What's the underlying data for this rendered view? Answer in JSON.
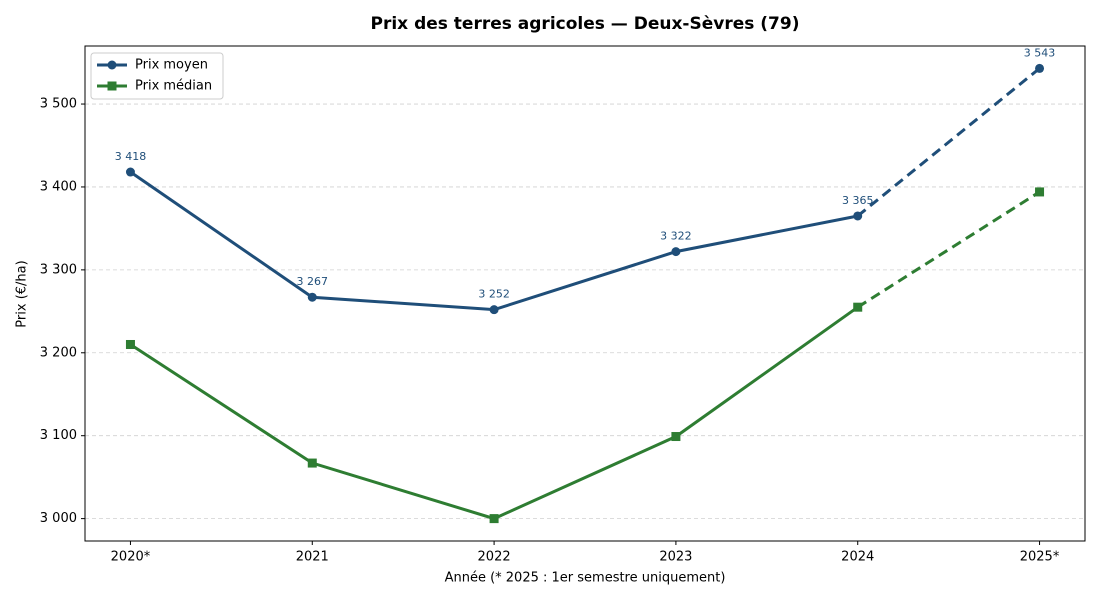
{
  "chart_data": {
    "type": "line",
    "title": "Prix des terres agricoles — Deux-Sèvres (79)",
    "x_label": "Année (* 2025 : 1er semestre uniquement)",
    "y_label": "Prix (€/ha)",
    "categories": [
      "2020*",
      "2021",
      "2022",
      "2023",
      "2024",
      "2025*"
    ],
    "series": [
      {
        "name": "Prix moyen",
        "color": "#1f4e79",
        "marker": "circle",
        "values": [
          3418,
          3267,
          3252,
          3322,
          3365,
          3543
        ],
        "value_labels": [
          "3 418",
          "3 267",
          "3 252",
          "3 322",
          "3 365",
          "3 543"
        ]
      },
      {
        "name": "Prix médian",
        "color": "#2e7d32",
        "marker": "square",
        "values": [
          3210,
          3067,
          3000,
          3099,
          3255,
          3394
        ]
      }
    ],
    "dashed_from": 4,
    "ylim": [
      2973,
      3570
    ],
    "yticks": [
      {
        "value": 3000,
        "label": "3 000"
      },
      {
        "value": 3100,
        "label": "3 100"
      },
      {
        "value": 3200,
        "label": "3 200"
      },
      {
        "value": 3300,
        "label": "3 300"
      },
      {
        "value": 3400,
        "label": "3 400"
      },
      {
        "value": 3500,
        "label": "3 500"
      }
    ],
    "grid": true,
    "legend": "upper-left"
  }
}
